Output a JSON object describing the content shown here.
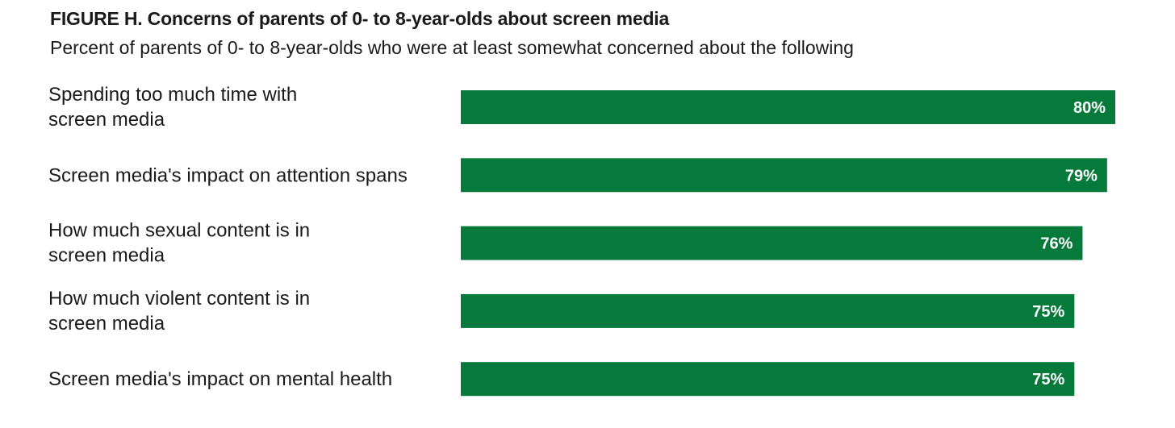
{
  "figure": {
    "title": "FIGURE H. Concerns of parents of 0- to 8-year-olds about screen media",
    "subtitle": "Percent of parents of 0- to 8-year-olds who were at least somewhat concerned about the following"
  },
  "colors": {
    "bar": "#067a3a",
    "value_label": "#ffffff",
    "text": "#1a1a1a"
  },
  "chart_data": {
    "type": "bar",
    "orientation": "horizontal",
    "title": "FIGURE H. Concerns of parents of 0- to 8-year-olds about screen media",
    "subtitle": "Percent of parents of 0- to 8-year-olds who were at least somewhat concerned about the following",
    "xlabel": "",
    "ylabel": "",
    "categories": [
      [
        "Spending too much time with",
        "screen media"
      ],
      [
        "Screen media's impact on attention spans"
      ],
      [
        "How much sexual content is in",
        "screen media"
      ],
      [
        "How much violent content is in",
        "screen media"
      ],
      [
        "Screen media's impact on mental health"
      ]
    ],
    "values": [
      80,
      79,
      76,
      75,
      75
    ],
    "value_labels": [
      "80%",
      "79%",
      "76%",
      "75%",
      "75%"
    ],
    "unit": "%",
    "xlim": [
      0,
      80
    ],
    "grid": false,
    "legend": "none"
  }
}
